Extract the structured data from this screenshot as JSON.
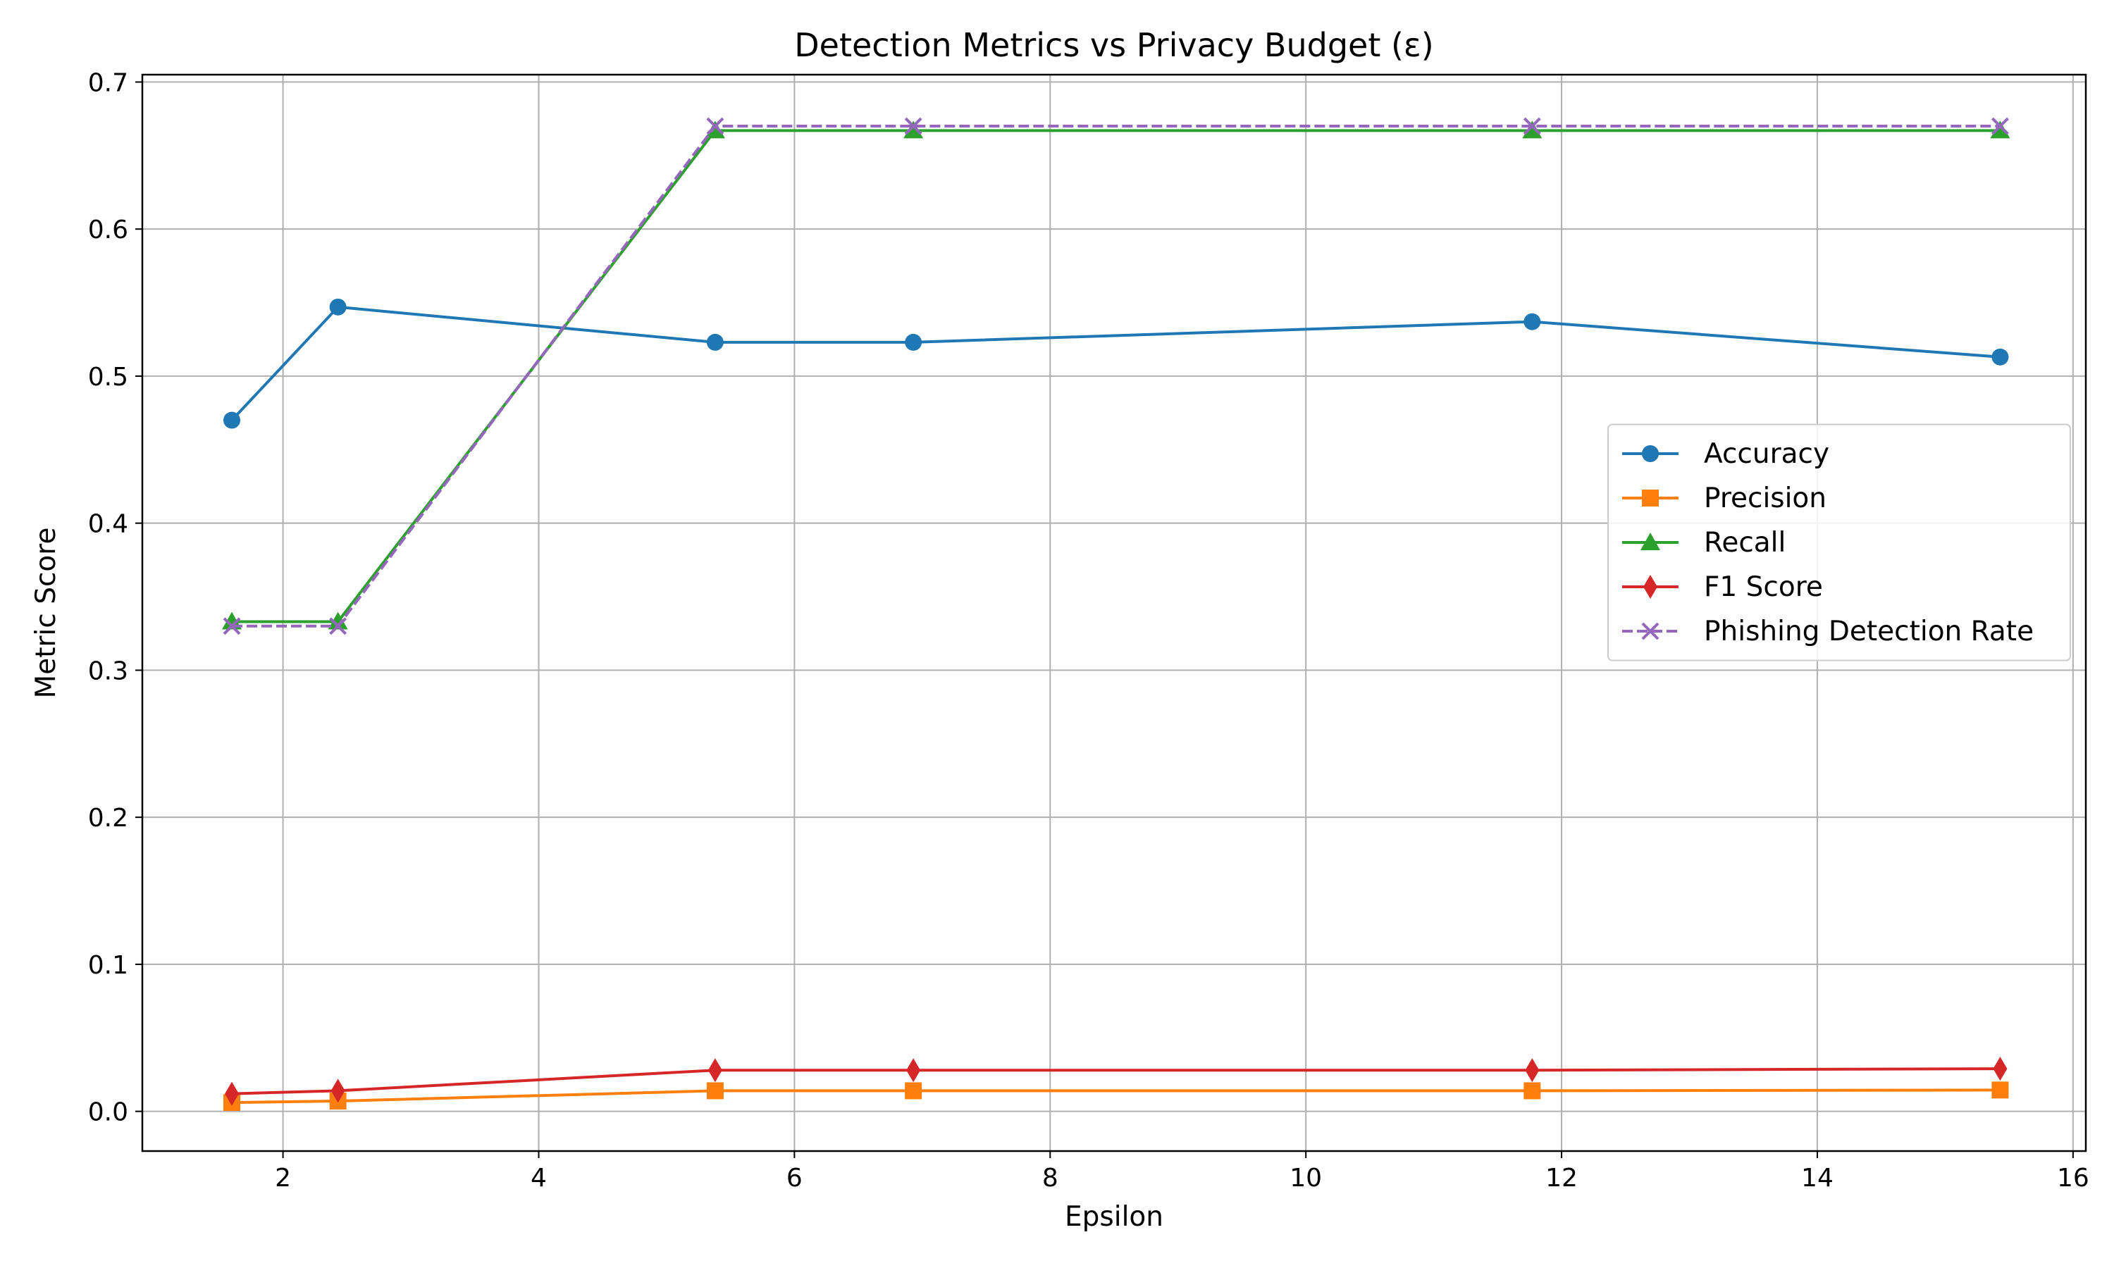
{
  "chart_data": {
    "type": "line",
    "title": "Detection Metrics vs Privacy Budget (ε)",
    "xlabel": "Epsilon",
    "ylabel": "Metric Score",
    "xlim": [
      0.9,
      16.1
    ],
    "ylim": [
      -0.027,
      0.705
    ],
    "xticks": [
      2,
      4,
      6,
      8,
      10,
      12,
      14,
      16
    ],
    "yticks": [
      0.0,
      0.1,
      0.2,
      0.3,
      0.4,
      0.5,
      0.6,
      0.7
    ],
    "xtick_labels": [
      "2",
      "4",
      "6",
      "8",
      "10",
      "12",
      "14",
      "16"
    ],
    "ytick_labels": [
      "0.0",
      "0.1",
      "0.2",
      "0.3",
      "0.4",
      "0.5",
      "0.6",
      "0.7"
    ],
    "grid": true,
    "legend_position": "center-right",
    "x": [
      1.6,
      2.43,
      5.38,
      6.93,
      11.77,
      15.43
    ],
    "series": [
      {
        "name": "Accuracy",
        "values": [
          0.47,
          0.547,
          0.523,
          0.523,
          0.537,
          0.513
        ],
        "color": "#1f77b4",
        "marker": "circle",
        "dash": "solid"
      },
      {
        "name": "Precision",
        "values": [
          0.006,
          0.007,
          0.014,
          0.014,
          0.014,
          0.0145
        ],
        "color": "#ff7f0e",
        "marker": "square",
        "dash": "solid"
      },
      {
        "name": "Recall",
        "values": [
          0.333,
          0.333,
          0.667,
          0.667,
          0.667,
          0.667
        ],
        "color": "#2ca02c",
        "marker": "triangle",
        "dash": "solid"
      },
      {
        "name": "F1 Score",
        "values": [
          0.012,
          0.014,
          0.028,
          0.028,
          0.028,
          0.029
        ],
        "color": "#d62728",
        "marker": "diamond",
        "dash": "solid"
      },
      {
        "name": "Phishing Detection Rate",
        "values": [
          0.33,
          0.33,
          0.67,
          0.67,
          0.67,
          0.67
        ],
        "color": "#9467bd",
        "marker": "x",
        "dash": "dashed"
      }
    ]
  }
}
